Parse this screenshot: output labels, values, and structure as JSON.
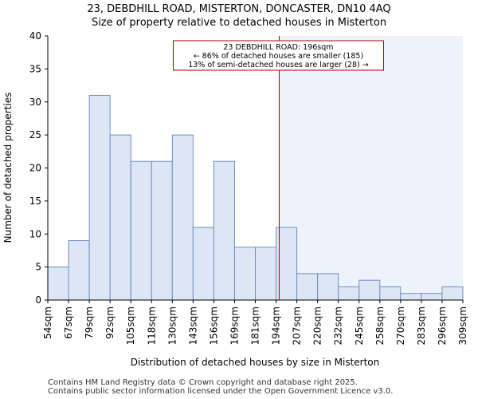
{
  "chart_data": {
    "type": "bar",
    "title_line1": "23, DEBDHILL ROAD, MISTERTON, DONCASTER, DN10 4AQ",
    "title_line2": "Size of property relative to detached houses in Misterton",
    "xlabel": "Distribution of detached houses by size in Misterton",
    "ylabel": "Number of detached properties",
    "ylim": [
      0,
      40
    ],
    "yticks": [
      0,
      5,
      10,
      15,
      20,
      25,
      30,
      35,
      40
    ],
    "bin_edges": [
      "54sqm",
      "67sqm",
      "79sqm",
      "92sqm",
      "105sqm",
      "118sqm",
      "130sqm",
      "143sqm",
      "156sqm",
      "169sqm",
      "181sqm",
      "194sqm",
      "207sqm",
      "220sqm",
      "232sqm",
      "245sqm",
      "258sqm",
      "270sqm",
      "283sqm",
      "296sqm",
      "309sqm"
    ],
    "values": [
      5,
      9,
      31,
      25,
      21,
      21,
      25,
      11,
      21,
      8,
      8,
      11,
      4,
      4,
      2,
      3,
      2,
      1,
      1,
      2
    ],
    "property_marker_bin_position": 11.15,
    "annotation": {
      "line1": "23 DEBDHILL ROAD: 196sqm",
      "line2": "← 86% of detached houses are smaller (185)",
      "line3": "13% of semi-detached houses are larger (28) →"
    },
    "colors": {
      "bar_fill": "#dce6f5",
      "bar_edge": "#6f8ec4",
      "shade": "#eef3fb",
      "marker": "#aa0000"
    }
  },
  "footer": {
    "line1": "Contains HM Land Registry data © Crown copyright and database right 2025.",
    "line2": "Contains public sector information licensed under the Open Government Licence v3.0."
  }
}
